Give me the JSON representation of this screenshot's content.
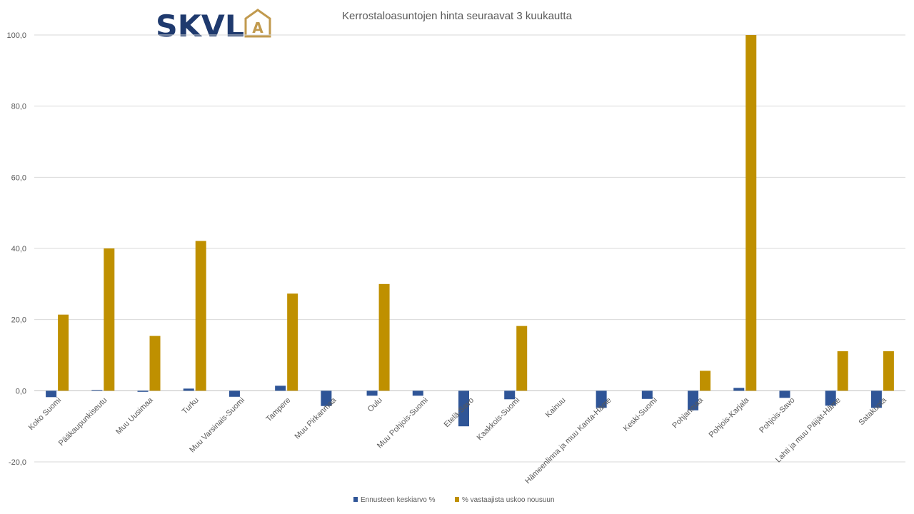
{
  "logo": {
    "text": "SKVL",
    "emblem_letter": "A",
    "text_color": "#1f3a6e",
    "emblem_color": "#c19a4e"
  },
  "chart_data": {
    "type": "bar",
    "title": "Kerrostaloasuntojen hinta seuraavat 3 kuukautta",
    "xlabel": "",
    "ylabel": "",
    "ylim": [
      -20,
      100
    ],
    "yticks": [
      -20,
      0,
      20,
      40,
      60,
      80,
      100
    ],
    "ytick_labels": [
      "-20,0",
      "0,0",
      "20,0",
      "40,0",
      "60,0",
      "80,0",
      "100,0"
    ],
    "grid": true,
    "legend_position": "bottom",
    "categories": [
      "Koko Suomi",
      "Pääkaupunkiseutu",
      "Muu Uusimaa",
      "Turku",
      "Muu Varsinais-Suomi",
      "Tampere",
      "Muu Pirkanmaa",
      "Oulu",
      "Muu Pohjois-Suomi",
      "Etelä-Savo",
      "Kaakkois-Suomi",
      "Kainuu",
      "Hämeenlinna ja muu Kanta-Häme",
      "Keski-Suomi",
      "Pohjanmaa",
      "Pohjois-Karjala",
      "Pohjois-Savo",
      "Lahti ja muu Päijät-Häme",
      "Satakunta"
    ],
    "series": [
      {
        "name": "Ennusteen keskiarvo %",
        "color": "#2f5597",
        "values": [
          -1.8,
          0.2,
          -0.3,
          0.6,
          -1.7,
          1.4,
          -4.3,
          -1.4,
          -1.4,
          -10.0,
          -2.4,
          0.0,
          -4.8,
          -2.3,
          -5.5,
          0.8,
          -2.0,
          -4.2,
          -4.8
        ]
      },
      {
        "name": "% vastaajista uskoo  nousuun",
        "color": "#bf9000",
        "values": [
          21.4,
          40.0,
          15.4,
          42.1,
          0.0,
          27.3,
          0.0,
          30.0,
          0.0,
          0.0,
          18.2,
          0.0,
          0.0,
          0.0,
          5.6,
          100.0,
          0.0,
          11.1,
          11.1
        ]
      }
    ]
  }
}
